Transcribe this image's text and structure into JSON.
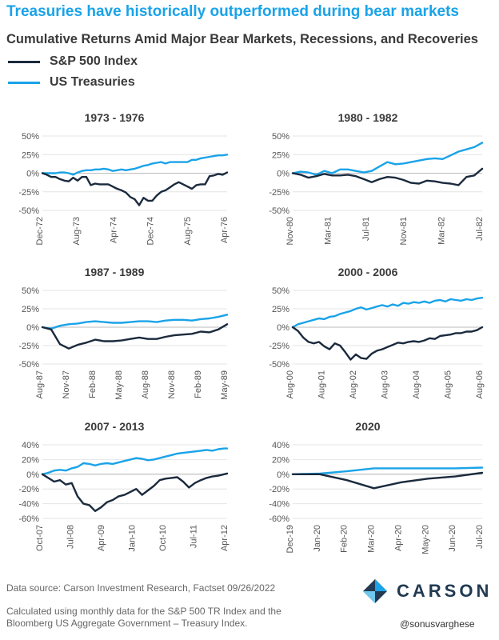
{
  "headline": "Treasuries have historically outperformed during bear markets",
  "subtitle": "Cumulative Returns Amid Major Bear Markets, Recessions, and Recoveries",
  "legend": [
    {
      "label": "S&P 500 Index",
      "color": "#1b2a3d"
    },
    {
      "label": "US Treasuries",
      "color": "#1aa3e8"
    }
  ],
  "colors": {
    "sp500": "#1b2a3d",
    "treasuries": "#1aa3e8",
    "headline": "#1aa3e8",
    "logo": "#223a52"
  },
  "chart_data": [
    {
      "type": "line",
      "title": "1973 - 1976",
      "x_ticks": [
        "Dec-72",
        "Aug-73",
        "Apr-74",
        "Dec-74",
        "Aug-75",
        "Apr-76"
      ],
      "x_range": [
        0,
        42
      ],
      "ylim": [
        -50,
        50
      ],
      "y_ticks": [
        -50,
        -25,
        0,
        25,
        50
      ],
      "y_tick_labels": [
        "-50%",
        "-25%",
        "0%",
        "25%",
        "50%"
      ],
      "series": [
        {
          "name": "S&P 500 Index",
          "color": "#1b2a3d",
          "x": [
            0,
            1,
            2,
            3,
            4,
            5,
            6,
            7,
            8,
            9,
            10,
            11,
            12,
            13,
            14,
            15,
            16,
            17,
            18,
            19,
            20,
            21,
            22,
            23,
            24,
            25,
            26,
            27,
            28,
            29,
            30,
            31,
            32,
            33,
            34,
            35,
            36,
            37,
            38,
            39,
            40,
            41,
            42
          ],
          "y": [
            0,
            -2,
            -5,
            -5,
            -8,
            -10,
            -11,
            -6,
            -10,
            -5,
            -5,
            -16,
            -14,
            -15,
            -15,
            -15,
            -18,
            -21,
            -23,
            -26,
            -32,
            -35,
            -43,
            -33,
            -37,
            -37,
            -30,
            -25,
            -23,
            -19,
            -15,
            -12,
            -15,
            -18,
            -21,
            -16,
            -15,
            -15,
            -4,
            -3,
            -1,
            -2,
            1
          ]
        },
        {
          "name": "US Treasuries",
          "color": "#1aa3e8",
          "x": [
            0,
            1,
            2,
            3,
            4,
            5,
            6,
            7,
            8,
            9,
            10,
            11,
            12,
            13,
            14,
            15,
            16,
            17,
            18,
            19,
            20,
            21,
            22,
            23,
            24,
            25,
            26,
            27,
            28,
            29,
            30,
            31,
            32,
            33,
            34,
            35,
            36,
            37,
            38,
            39,
            40,
            41,
            42
          ],
          "y": [
            0,
            0,
            0,
            0,
            1,
            1,
            0,
            -2,
            1,
            3,
            4,
            4,
            5,
            5,
            6,
            5,
            3,
            4,
            5,
            4,
            5,
            6,
            8,
            10,
            11,
            13,
            14,
            15,
            13,
            15,
            15,
            15,
            15,
            15,
            18,
            18,
            20,
            21,
            22,
            23,
            24,
            24,
            25
          ]
        }
      ]
    },
    {
      "type": "line",
      "title": "1980 - 1982",
      "x_ticks": [
        "Nov-80",
        "Mar-81",
        "Jul-81",
        "Nov-81",
        "Mar-82",
        "Jul-82"
      ],
      "x_range": [
        0,
        24
      ],
      "ylim": [
        -50,
        50
      ],
      "y_ticks": [
        -50,
        -25,
        0,
        25,
        50
      ],
      "y_tick_labels": [
        "-50%",
        "-25%",
        "0%",
        "25%",
        "50%"
      ],
      "series": [
        {
          "name": "S&P 500 Index",
          "color": "#1b2a3d",
          "x": [
            0,
            1,
            2,
            3,
            4,
            5,
            6,
            7,
            8,
            9,
            10,
            11,
            12,
            13,
            14,
            15,
            16,
            17,
            18,
            19,
            20,
            21,
            22,
            23,
            24
          ],
          "y": [
            0,
            -2,
            -6,
            -4,
            -1,
            -3,
            -3,
            -2,
            -4,
            -8,
            -12,
            -8,
            -5,
            -6,
            -9,
            -13,
            -14,
            -10,
            -11,
            -13,
            -14,
            -16,
            -5,
            -3,
            6
          ]
        },
        {
          "name": "US Treasuries",
          "color": "#1aa3e8",
          "x": [
            0,
            1,
            2,
            3,
            4,
            5,
            6,
            7,
            8,
            9,
            10,
            11,
            12,
            13,
            14,
            15,
            16,
            17,
            18,
            19,
            20,
            21,
            22,
            23,
            24
          ],
          "y": [
            0,
            2,
            1,
            -2,
            3,
            0,
            5,
            5,
            3,
            1,
            3,
            9,
            15,
            12,
            13,
            15,
            17,
            19,
            20,
            19,
            24,
            29,
            32,
            35,
            41
          ]
        }
      ]
    },
    {
      "type": "line",
      "title": "1987 - 1989",
      "x_ticks": [
        "Aug-87",
        "Nov-87",
        "Feb-88",
        "May-88",
        "Aug-88",
        "Nov-88",
        "Feb-89",
        "May-89"
      ],
      "x_range": [
        0,
        21
      ],
      "ylim": [
        -50,
        50
      ],
      "y_ticks": [
        -50,
        -25,
        0,
        25,
        50
      ],
      "y_tick_labels": [
        "-50%",
        "-25%",
        "0%",
        "25%",
        "50%"
      ],
      "series": [
        {
          "name": "S&P 500 Index",
          "color": "#1b2a3d",
          "x": [
            0,
            1,
            2,
            3,
            4,
            5,
            6,
            7,
            8,
            9,
            10,
            11,
            12,
            13,
            14,
            15,
            16,
            17,
            18,
            19,
            20,
            21
          ],
          "y": [
            0,
            -3,
            -23,
            -29,
            -24,
            -21,
            -17,
            -19,
            -19,
            -18,
            -16,
            -14,
            -16,
            -16,
            -13,
            -11,
            -10,
            -9,
            -6,
            -7,
            -3,
            4
          ]
        },
        {
          "name": "US Treasuries",
          "color": "#1aa3e8",
          "x": [
            0,
            1,
            2,
            3,
            4,
            5,
            6,
            7,
            8,
            9,
            10,
            11,
            12,
            13,
            14,
            15,
            16,
            17,
            18,
            19,
            20,
            21
          ],
          "y": [
            0,
            -2,
            2,
            4,
            5,
            7,
            8,
            7,
            6,
            6,
            7,
            8,
            8,
            7,
            9,
            10,
            10,
            9,
            11,
            12,
            14,
            17
          ]
        }
      ]
    },
    {
      "type": "line",
      "title": "2000 - 2006",
      "x_ticks": [
        "Aug-00",
        "Aug-01",
        "Aug-02",
        "Aug-03",
        "Aug-04",
        "Aug-05",
        "Aug-06"
      ],
      "x_range": [
        0,
        72
      ],
      "ylim": [
        -50,
        50
      ],
      "y_ticks": [
        -50,
        -25,
        0,
        25,
        50
      ],
      "y_tick_labels": [
        "-50%",
        "-25%",
        "0%",
        "25%",
        "50%"
      ],
      "series": [
        {
          "name": "S&P 500 Index",
          "color": "#1b2a3d",
          "x": [
            0,
            2,
            4,
            6,
            8,
            10,
            12,
            14,
            16,
            18,
            20,
            22,
            24,
            26,
            28,
            30,
            32,
            34,
            36,
            38,
            40,
            42,
            44,
            46,
            48,
            50,
            52,
            54,
            56,
            58,
            60,
            62,
            64,
            66,
            68,
            70,
            72
          ],
          "y": [
            0,
            -5,
            -14,
            -20,
            -22,
            -20,
            -26,
            -30,
            -22,
            -25,
            -34,
            -44,
            -37,
            -42,
            -43,
            -36,
            -32,
            -30,
            -27,
            -24,
            -21,
            -22,
            -20,
            -19,
            -20,
            -18,
            -15,
            -16,
            -12,
            -11,
            -10,
            -8,
            -8,
            -6,
            -6,
            -4,
            0
          ]
        },
        {
          "name": "US Treasuries",
          "color": "#1aa3e8",
          "x": [
            0,
            2,
            4,
            6,
            8,
            10,
            12,
            14,
            16,
            18,
            20,
            22,
            24,
            26,
            28,
            30,
            32,
            34,
            36,
            38,
            40,
            42,
            44,
            46,
            48,
            50,
            52,
            54,
            56,
            58,
            60,
            62,
            64,
            66,
            68,
            70,
            72
          ],
          "y": [
            0,
            4,
            6,
            8,
            10,
            12,
            11,
            14,
            15,
            18,
            20,
            22,
            25,
            27,
            24,
            26,
            28,
            30,
            28,
            31,
            29,
            33,
            32,
            34,
            33,
            35,
            33,
            36,
            37,
            35,
            38,
            37,
            36,
            38,
            37,
            39,
            40
          ]
        }
      ]
    },
    {
      "type": "line",
      "title": "2007 - 2013",
      "x_ticks": [
        "Oct-07",
        "Jul-08",
        "Apr-09",
        "Jan-10",
        "Oct-10",
        "Jul-11",
        "Apr-12"
      ],
      "x_range": [
        0,
        63
      ],
      "ylim": [
        -60,
        40
      ],
      "y_ticks": [
        -60,
        -40,
        -20,
        0,
        20,
        40
      ],
      "y_tick_labels": [
        "-60%",
        "-40%",
        "-20%",
        "0%",
        "20%",
        "40%"
      ],
      "series": [
        {
          "name": "S&P 500 Index",
          "color": "#1b2a3d",
          "x": [
            0,
            2,
            4,
            6,
            8,
            10,
            12,
            14,
            16,
            18,
            20,
            22,
            24,
            26,
            28,
            30,
            32,
            34,
            36,
            38,
            40,
            42,
            44,
            46,
            48,
            50,
            52,
            54,
            56,
            58,
            60,
            62,
            63
          ],
          "y": [
            0,
            -5,
            -10,
            -8,
            -14,
            -12,
            -30,
            -40,
            -42,
            -50,
            -45,
            -38,
            -35,
            -30,
            -28,
            -24,
            -20,
            -28,
            -22,
            -16,
            -8,
            -6,
            -5,
            -4,
            -10,
            -18,
            -12,
            -8,
            -5,
            -3,
            -2,
            0,
            1
          ]
        },
        {
          "name": "US Treasuries",
          "color": "#1aa3e8",
          "x": [
            0,
            2,
            4,
            6,
            8,
            10,
            12,
            14,
            16,
            18,
            20,
            22,
            24,
            26,
            28,
            30,
            32,
            34,
            36,
            38,
            40,
            42,
            44,
            46,
            48,
            50,
            52,
            54,
            56,
            58,
            60,
            62,
            63
          ],
          "y": [
            0,
            2,
            5,
            6,
            5,
            8,
            10,
            15,
            14,
            12,
            14,
            15,
            14,
            16,
            18,
            20,
            22,
            21,
            19,
            20,
            22,
            24,
            26,
            28,
            29,
            30,
            31,
            32,
            33,
            32,
            34,
            35,
            35
          ]
        }
      ]
    },
    {
      "type": "line",
      "title": "2020",
      "x_ticks": [
        "Dec-19",
        "Jan-20",
        "Feb-20",
        "Mar-20",
        "Apr-20",
        "May-20",
        "Jun-20",
        "Jul-20"
      ],
      "x_range": [
        0,
        7
      ],
      "ylim": [
        -60,
        40
      ],
      "y_ticks": [
        -60,
        -40,
        -20,
        0,
        20,
        40
      ],
      "y_tick_labels": [
        "-60%",
        "-40%",
        "-20%",
        "0%",
        "20%",
        "40%"
      ],
      "series": [
        {
          "name": "S&P 500 Index",
          "color": "#1b2a3d",
          "x": [
            0,
            1,
            2,
            3,
            4,
            5,
            6,
            7
          ],
          "y": [
            0,
            0,
            -8,
            -19,
            -11,
            -6,
            -3,
            2
          ]
        },
        {
          "name": "US Treasuries",
          "color": "#1aa3e8",
          "x": [
            0,
            1,
            2,
            3,
            4,
            5,
            6,
            7
          ],
          "y": [
            0,
            1,
            4,
            8,
            8,
            8,
            8,
            9
          ]
        }
      ]
    }
  ],
  "footer": {
    "source": "Data source: Carson Investment Research, Factset  09/26/2022",
    "note": "Calculated using monthly data for the S&P 500 TR Index and the Bloomberg US Aggregate Government – Treasury Index.",
    "logo": "CARSON",
    "handle": "@sonusvarghese"
  }
}
